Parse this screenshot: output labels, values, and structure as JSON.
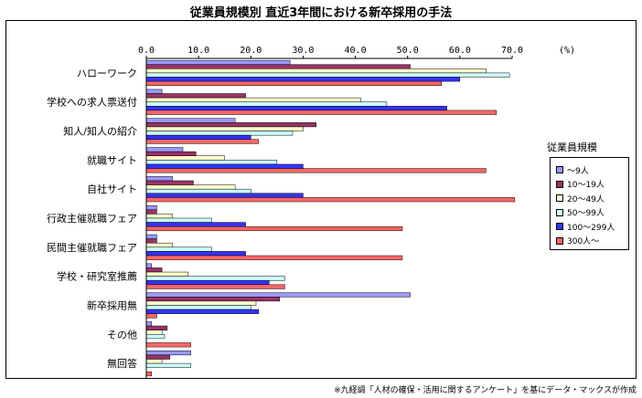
{
  "chart_data": {
    "type": "bar",
    "orientation": "horizontal",
    "title": "従業員規模別 直近3年間における新卒採用の手法",
    "unit_label": "(%)",
    "xlim": [
      0,
      70
    ],
    "ticks": [
      "0.0",
      "10.0",
      "20.0",
      "30.0",
      "40.0",
      "50.0",
      "60.0",
      "70.0"
    ],
    "tick_values": [
      0,
      10,
      20,
      30,
      40,
      50,
      60,
      70
    ],
    "categories": [
      "ハローワーク",
      "学校への求人票送付",
      "知人/知人の紹介",
      "就職サイト",
      "自社サイト",
      "行政主催就職フェア",
      "民間主催就職フェア",
      "学校・研究室推薦",
      "新卒採用無",
      "その他",
      "無回答"
    ],
    "legend_title": "従業員規模",
    "legend_position": "right",
    "grid": false,
    "series": [
      {
        "name": "〜9人",
        "color": "#9999ff",
        "values": [
          27.5,
          3,
          17,
          7,
          5,
          2,
          2,
          1,
          50.5,
          1,
          8.5
        ]
      },
      {
        "name": "10〜19人",
        "color": "#993366",
        "values": [
          50.5,
          19,
          32.5,
          9.5,
          9,
          2,
          2,
          3,
          25.5,
          4,
          4.5
        ]
      },
      {
        "name": "20〜49人",
        "color": "#ffffcc",
        "values": [
          65,
          41,
          30,
          15,
          17,
          5,
          5,
          8,
          21,
          3,
          3
        ]
      },
      {
        "name": "50〜99人",
        "color": "#ccffff",
        "values": [
          69.5,
          46,
          28,
          25,
          20,
          12.5,
          12.5,
          26.5,
          20,
          3.5,
          8.5
        ]
      },
      {
        "name": "100〜299人",
        "color": "#3333ff",
        "values": [
          60,
          57.5,
          20,
          30,
          30,
          19,
          19,
          23.5,
          21.5,
          0,
          0
        ]
      },
      {
        "name": "300人〜",
        "color": "#ff6666",
        "values": [
          56.5,
          67,
          21.5,
          65,
          70.5,
          49,
          49,
          26.5,
          2,
          8.5,
          1
        ]
      }
    ]
  },
  "source_note": "※九経調「人材の確保・活用に関するアンケート」を基にデータ・マックスが作成"
}
